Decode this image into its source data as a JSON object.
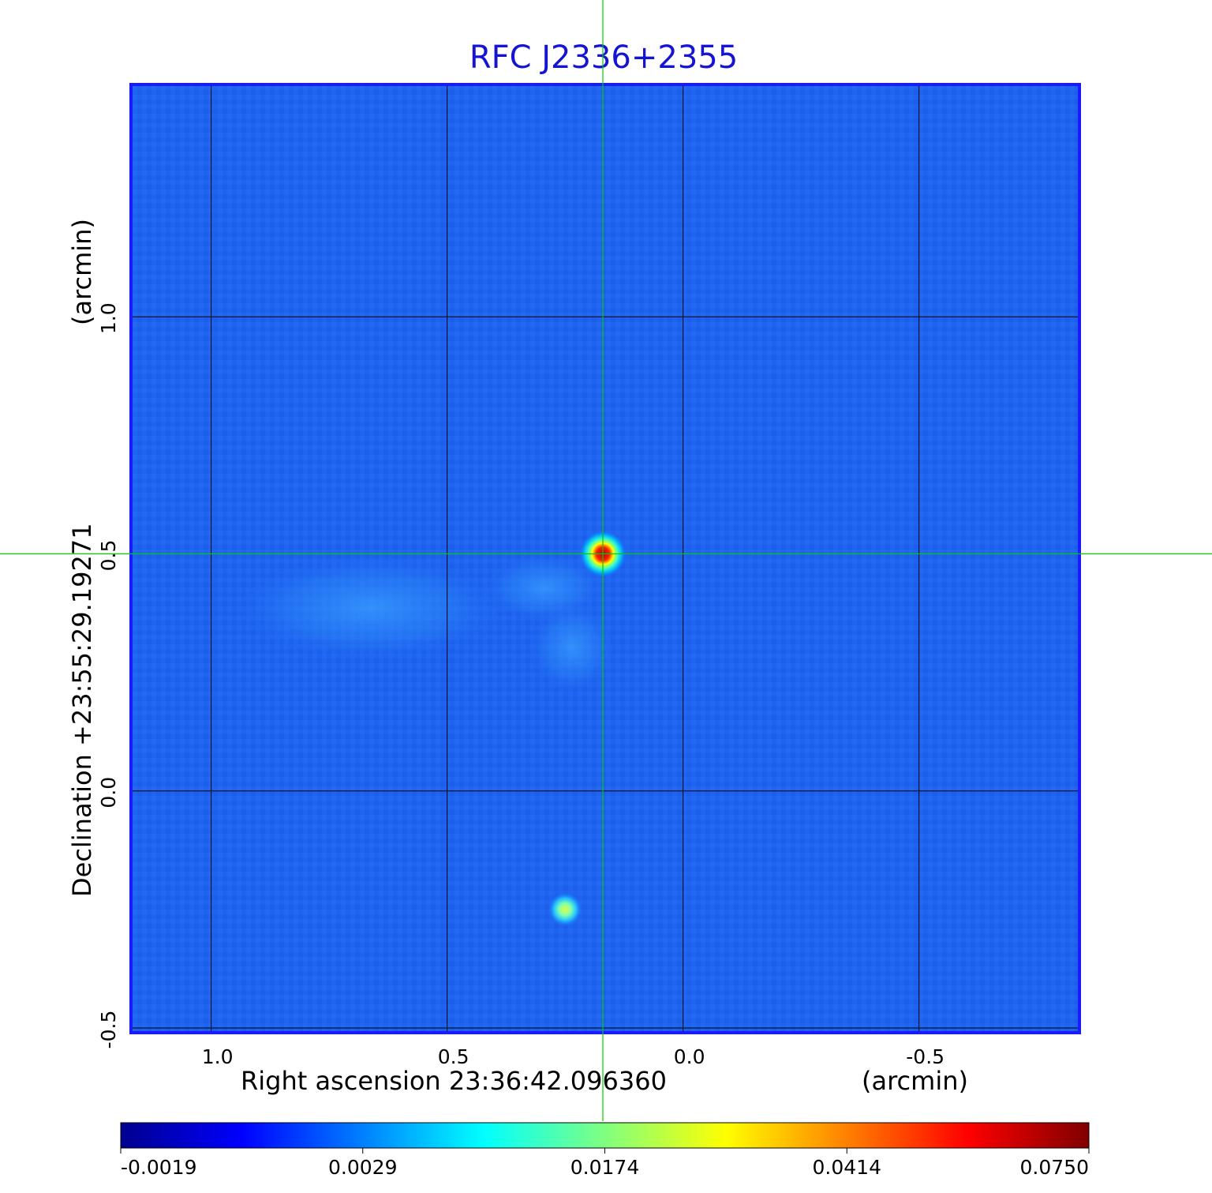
{
  "title": "RFC J2336+2355",
  "x_axis": {
    "label": "Right ascension  23:36:42.096360",
    "unit": "(arcmin)",
    "ticks": [
      {
        "value": 1.0,
        "label": "1.0"
      },
      {
        "value": 0.5,
        "label": "0.5"
      },
      {
        "value": 0.0,
        "label": "0.0"
      },
      {
        "value": -0.5,
        "label": "-0.5"
      }
    ],
    "range": [
      1.17,
      -0.84
    ]
  },
  "y_axis": {
    "label": "Declination  +23:55:29.19271",
    "unit": "(arcmin)",
    "ticks": [
      {
        "value": 1.0,
        "label": "1.0"
      },
      {
        "value": 0.5,
        "label": "0.5"
      },
      {
        "value": 0.0,
        "label": "0.0"
      },
      {
        "value": -0.5,
        "label": "-0.5"
      }
    ],
    "range": [
      -0.51,
      1.49
    ]
  },
  "colorbar": {
    "ticks": [
      "-0.0019",
      "0.0029",
      "0.0174",
      "0.0414",
      "0.0750"
    ],
    "stops": [
      "#00008f",
      "#0000ff",
      "#0080ff",
      "#00ffff",
      "#80ff80",
      "#ffff00",
      "#ff8000",
      "#ff0000",
      "#800000"
    ]
  },
  "colors": {
    "title": "#1414d2",
    "frame": "#1a1aff",
    "background_map": "#1e64f0",
    "grid": "#000000",
    "crosshair": "#00cc00"
  },
  "chart_data": {
    "type": "heatmap",
    "title": "RFC J2336+2355",
    "xlabel": "Right ascension  23:36:42.096360",
    "ylabel": "Declination  +23:55:29.19271",
    "x_unit": "arcmin",
    "y_unit": "arcmin",
    "xlim": [
      1.17,
      -0.84
    ],
    "ylim": [
      -0.51,
      1.49
    ],
    "grid": true,
    "color_scale": {
      "min": -0.0019,
      "max": 0.075,
      "ticks": [
        -0.0019,
        0.0029,
        0.0174,
        0.0414,
        0.075
      ]
    },
    "crosshair": {
      "x": 0.17,
      "y": 0.5
    },
    "sources": [
      {
        "x": 0.17,
        "y": 0.5,
        "peak": 0.075
      },
      {
        "x": 0.25,
        "y": -0.25,
        "peak": 0.02
      }
    ]
  }
}
